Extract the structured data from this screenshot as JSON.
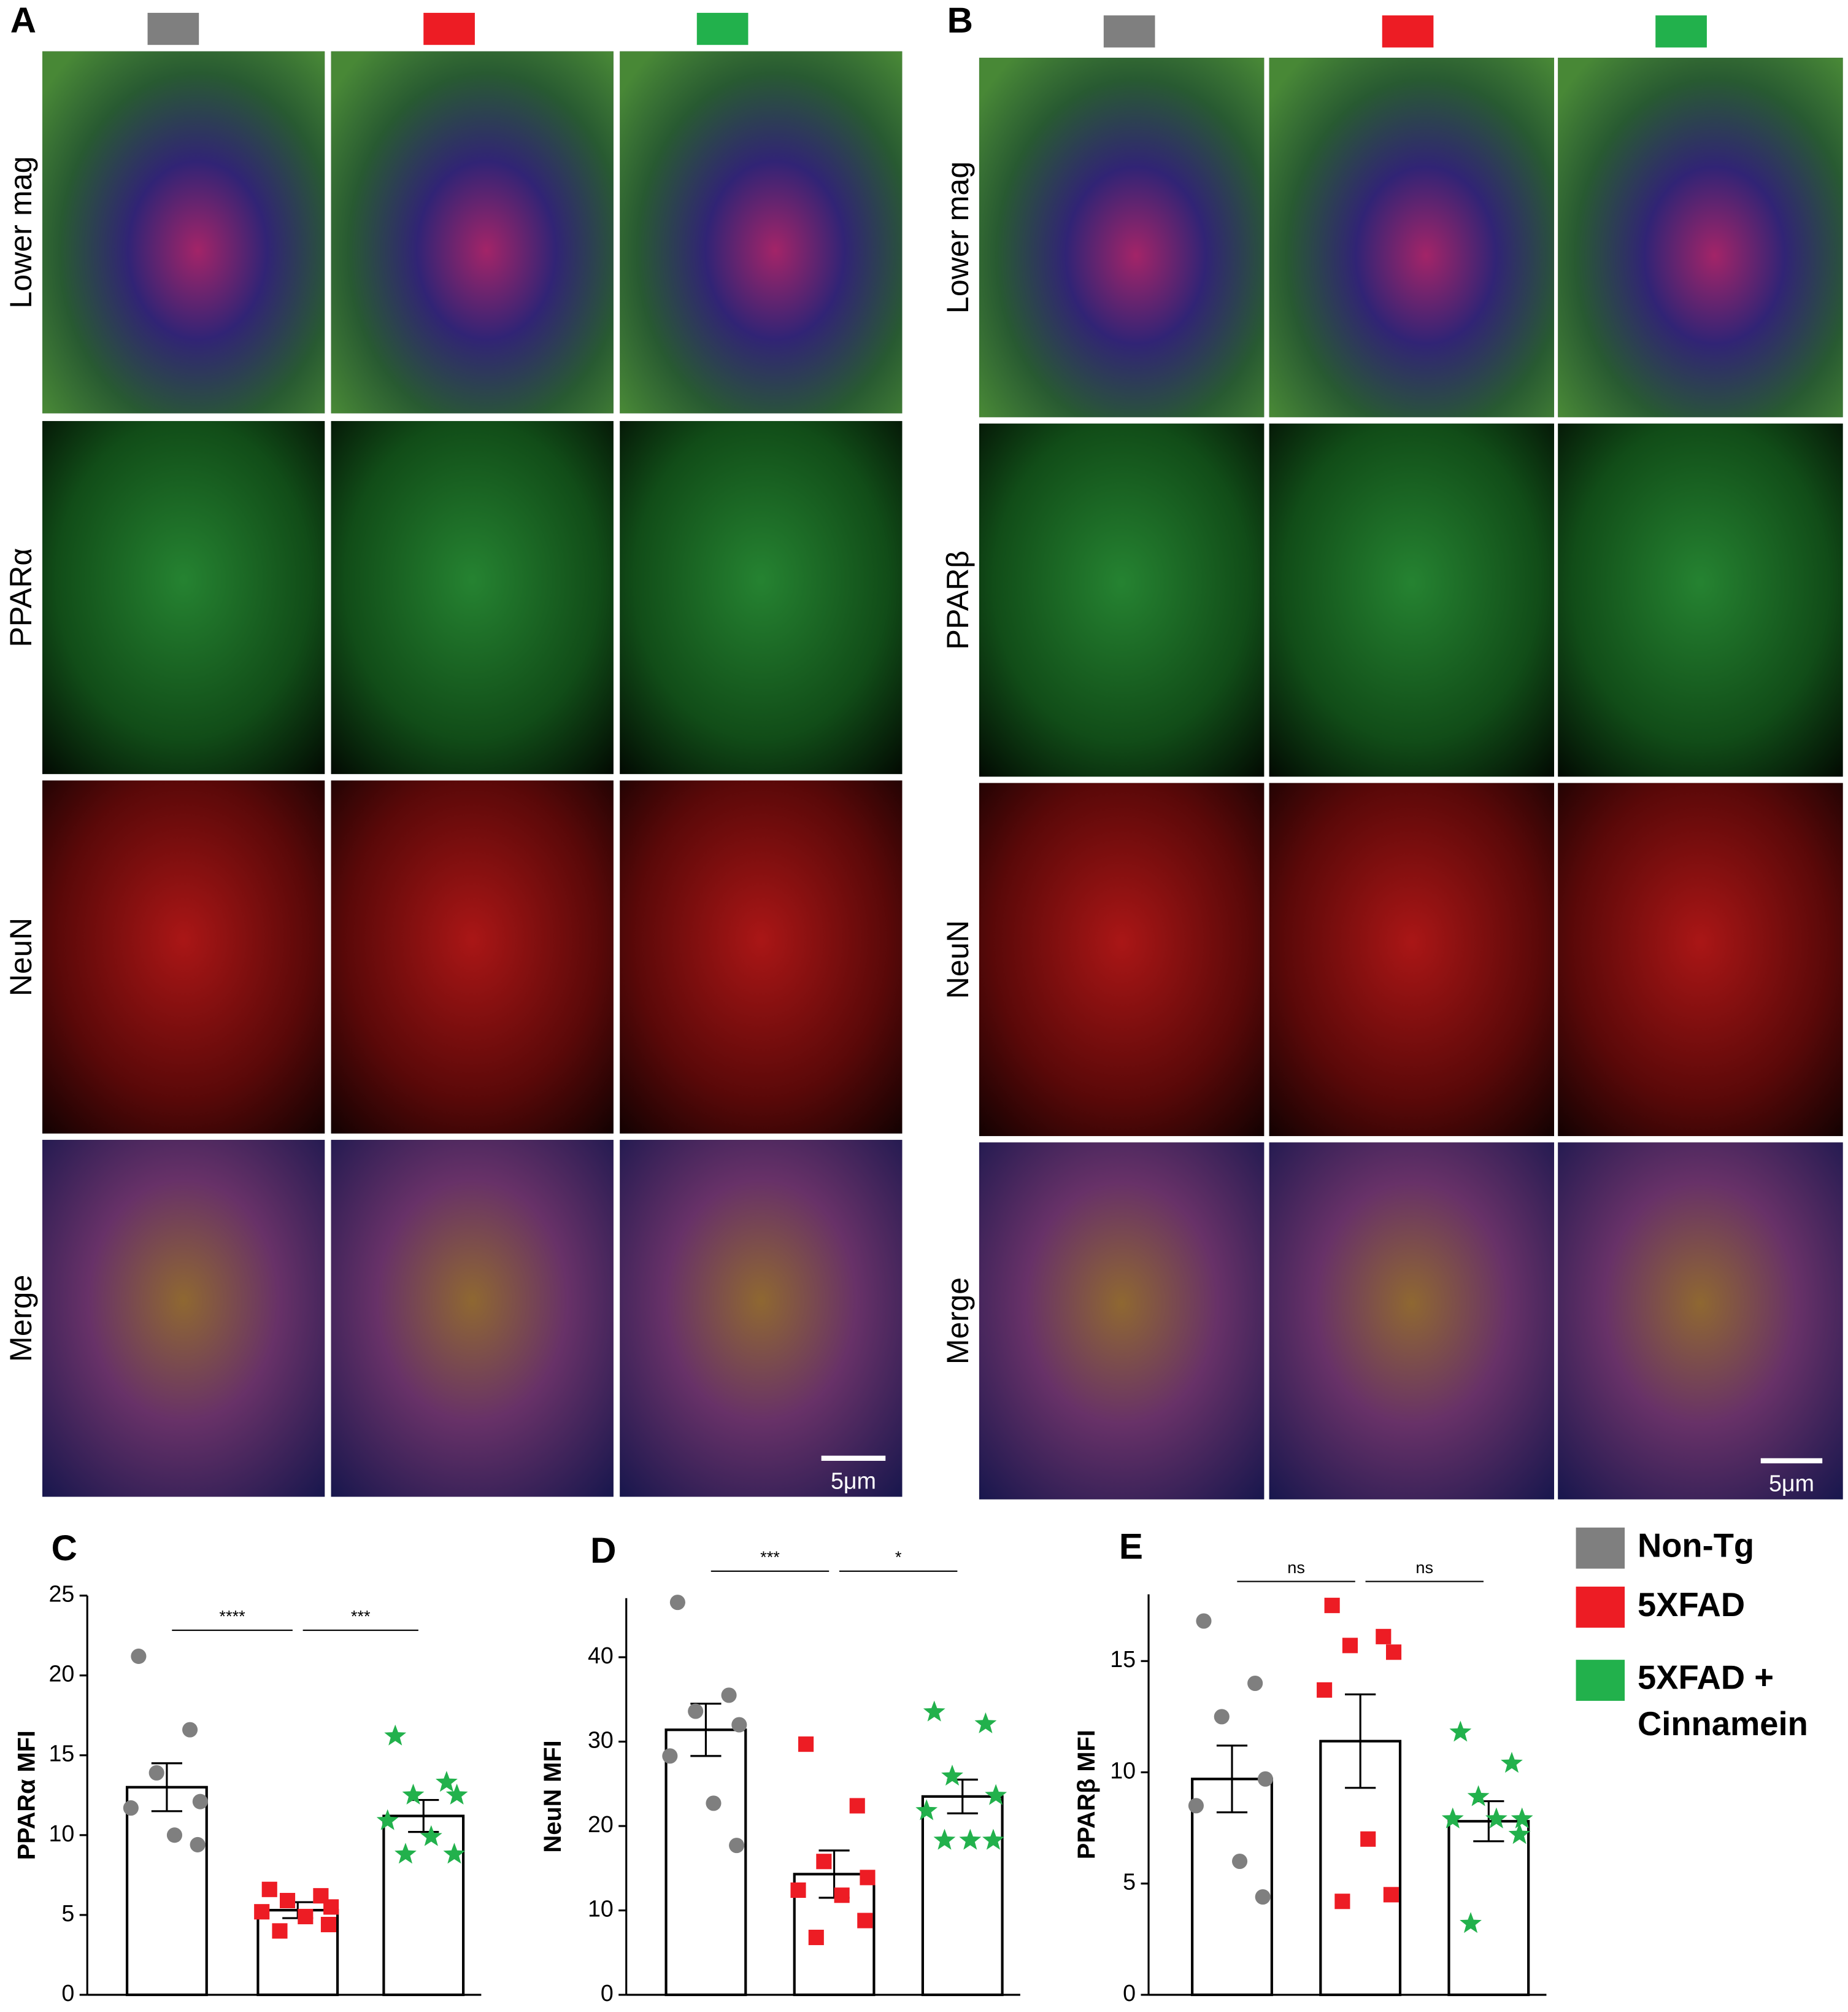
{
  "figure": {
    "panels": [
      {
        "label": "A",
        "rows": [
          "Lower mag",
          "PPARα",
          "NeuN",
          "Merge"
        ],
        "scale_bar": "5μm"
      },
      {
        "label": "B",
        "rows": [
          "Lower mag",
          "PPARβ",
          "NeuN",
          "Merge"
        ],
        "scale_bar": "5μm"
      }
    ]
  },
  "chart_data": [
    {
      "type": "bar",
      "label": "C",
      "ylabel": "PPARα MFI",
      "ylim": [
        0,
        25
      ],
      "yticks": [
        0,
        5,
        10,
        15,
        20,
        25
      ],
      "significance": [
        "****",
        "***"
      ],
      "series": [
        {
          "name": "Non-Tg",
          "color": "#7f7f7f",
          "marker": "circle",
          "values": [
            13.0
          ],
          "errors": [
            1.5
          ],
          "points": [
            21.2,
            16.6,
            13.9,
            12.1,
            11.7,
            10.0,
            9.4
          ]
        },
        {
          "name": "5XFAD",
          "color": "#ed1c24",
          "marker": "square",
          "values": [
            5.3
          ],
          "errors": [
            0.5
          ],
          "points": [
            6.6,
            6.2,
            5.9,
            5.5,
            5.2,
            4.9,
            4.4,
            4.0
          ]
        },
        {
          "name": "5XFAD + Cinnamein",
          "color": "#22b14c",
          "marker": "star",
          "values": [
            11.2
          ],
          "errors": [
            1.0
          ],
          "points": [
            16.2,
            13.3,
            12.5,
            12.5,
            10.9,
            9.9,
            8.8,
            8.8
          ]
        }
      ]
    },
    {
      "type": "bar",
      "label": "D",
      "ylabel": "NeuN MFI",
      "ylim": [
        0,
        47
      ],
      "yticks": [
        0,
        10,
        20,
        30,
        40
      ],
      "significance": [
        "***",
        "*"
      ],
      "series": [
        {
          "name": "Non-Tg",
          "color": "#7f7f7f",
          "marker": "circle",
          "values": [
            31.4
          ],
          "errors": [
            3.1
          ],
          "points": [
            46.5,
            35.5,
            33.6,
            32.0,
            28.3,
            22.7,
            17.7
          ]
        },
        {
          "name": "5XFAD",
          "color": "#ed1c24",
          "marker": "square",
          "values": [
            14.3
          ],
          "errors": [
            2.8
          ],
          "points": [
            29.7,
            22.4,
            15.8,
            13.9,
            12.4,
            11.8,
            8.8,
            6.8
          ]
        },
        {
          "name": "5XFAD + Cinnamein",
          "color": "#22b14c",
          "marker": "star",
          "values": [
            23.5
          ],
          "errors": [
            2.0
          ],
          "points": [
            33.5,
            32.1,
            25.9,
            23.6,
            21.8,
            18.3,
            18.3,
            18.3
          ]
        }
      ]
    },
    {
      "type": "bar",
      "label": "E",
      "ylabel": "PPARβ MFI",
      "ylim": [
        0,
        18
      ],
      "yticks": [
        0,
        5,
        10,
        15
      ],
      "significance": [
        "ns",
        "ns"
      ],
      "series": [
        {
          "name": "Non-Tg",
          "color": "#7f7f7f",
          "marker": "circle",
          "values": [
            9.7
          ],
          "errors": [
            1.5
          ],
          "points": [
            16.8,
            14.0,
            12.5,
            9.7,
            8.5,
            6.0,
            4.4
          ]
        },
        {
          "name": "5XFAD",
          "color": "#ed1c24",
          "marker": "square",
          "values": [
            11.4
          ],
          "errors": [
            2.1
          ],
          "points": [
            17.5,
            16.1,
            15.7,
            15.4,
            13.7,
            7.0,
            4.5,
            4.2
          ]
        },
        {
          "name": "5XFAD + Cinnamein",
          "color": "#22b14c",
          "marker": "star",
          "values": [
            7.8
          ],
          "errors": [
            0.9
          ],
          "points": [
            11.8,
            10.4,
            8.9,
            7.9,
            7.9,
            7.9,
            7.2,
            3.2
          ]
        }
      ]
    }
  ]
}
